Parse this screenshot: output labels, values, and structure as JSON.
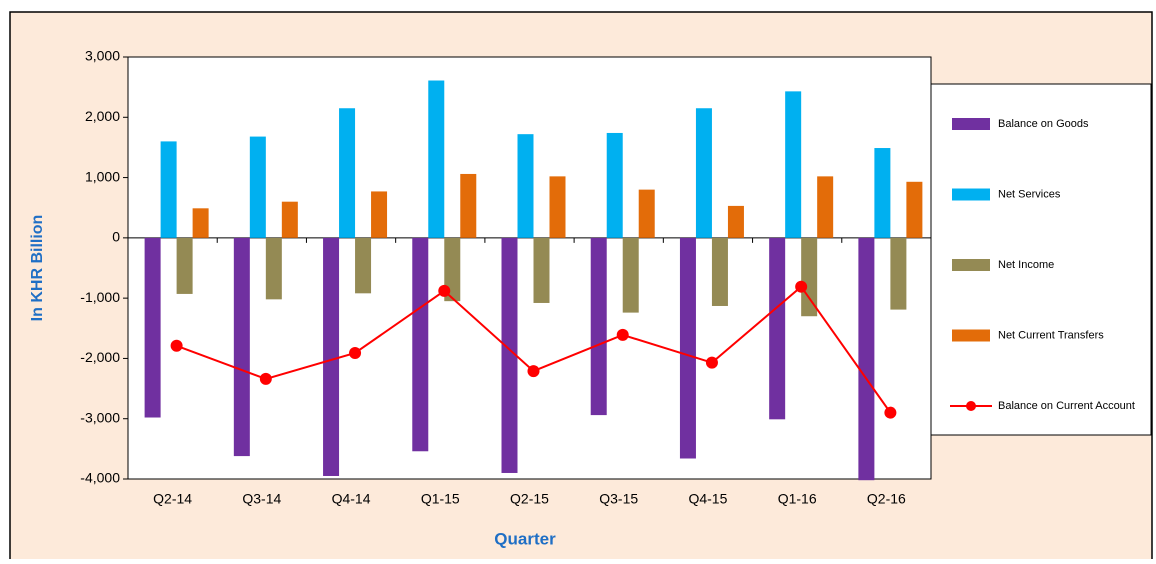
{
  "chart_data": {
    "type": "bar",
    "y_label": "In KHR Billion",
    "x_label": "Quarter",
    "categories": [
      "Q2-14",
      "Q3-14",
      "Q4-14",
      "Q1-15",
      "Q2-15",
      "Q3-15",
      "Q4-15",
      "Q1-16",
      "Q2-16"
    ],
    "series": [
      {
        "name": "Balance on Goods",
        "color": "#7030a0",
        "type": "bar",
        "values": [
          -2980,
          -3620,
          -3950,
          -3540,
          -3900,
          -2940,
          -3660,
          -3010,
          -4020
        ]
      },
      {
        "name": "Net Services",
        "color": "#00b0f0",
        "type": "bar",
        "values": [
          1600,
          1680,
          2150,
          2610,
          1720,
          1740,
          2150,
          2430,
          1490
        ]
      },
      {
        "name": "Net Income",
        "color": "#948a54",
        "type": "bar",
        "values": [
          -930,
          -1020,
          -920,
          -1050,
          -1080,
          -1240,
          -1130,
          -1300,
          -1190
        ]
      },
      {
        "name": "Net Current Transfers",
        "color": "#e36c09",
        "type": "bar",
        "values": [
          490,
          600,
          770,
          1060,
          1020,
          800,
          530,
          1020,
          930
        ]
      },
      {
        "name": "Balance on Current Account",
        "color": "#ff0000",
        "type": "line",
        "values": [
          -1790,
          -2340,
          -1910,
          -880,
          -2210,
          -1610,
          -2070,
          -810,
          -2900
        ]
      }
    ],
    "ylim": [
      -4000,
      3000
    ],
    "yticks": [
      {
        "value": 3000,
        "label": "3,000"
      },
      {
        "value": 2000,
        "label": "2,000"
      },
      {
        "value": 1000,
        "label": "1,000"
      },
      0,
      {
        "value": -1000,
        "label": "-1,000"
      },
      {
        "value": -2000,
        "label": "-2,000"
      },
      {
        "value": -3000,
        "label": "-3,000"
      },
      {
        "value": -4000,
        "label": "-4,000"
      }
    ],
    "legend": "right"
  }
}
